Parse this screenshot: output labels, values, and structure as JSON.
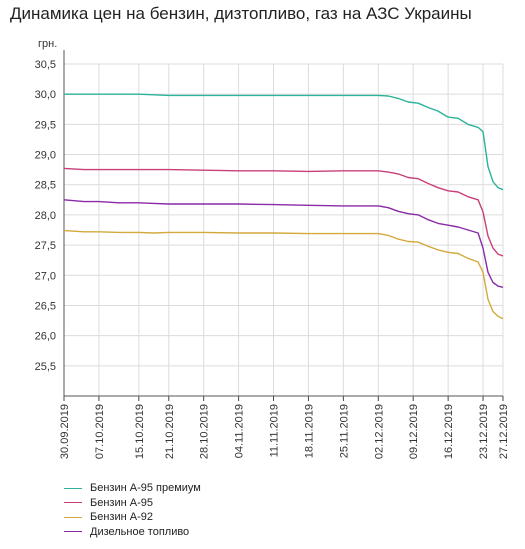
{
  "chart_data": {
    "type": "line",
    "title": "Динамика цен на бензин, дизтопливо, газ на АЗС Украины",
    "ylabel": "грн.",
    "xlabel": "",
    "ylim": [
      25.0,
      30.5
    ],
    "yticks": [
      "25,5",
      "26,0",
      "26,5",
      "27,0",
      "27,5",
      "28,0",
      "28,5",
      "29,0",
      "29,5",
      "30,0",
      "30,5"
    ],
    "ytick_values": [
      25.5,
      26.0,
      26.5,
      27.0,
      27.5,
      28.0,
      28.5,
      29.0,
      29.5,
      30.0,
      30.5
    ],
    "x_dates": [
      "30.09.2019",
      "07.10.2019",
      "15.10.2019",
      "21.10.2019",
      "28.10.2019",
      "04.11.2019",
      "11.11.2019",
      "18.11.2019",
      "25.11.2019",
      "02.12.2019",
      "09.12.2019",
      "16.12.2019",
      "23.12.2019",
      "27.12.2019"
    ],
    "grid": true,
    "legend_position": "bottom-left",
    "series": [
      {
        "name": "Бензин А-95 премиум",
        "color": "#2ab39a",
        "values": [
          [
            "30.09.2019",
            30.0
          ],
          [
            "04.10.2019",
            30.0
          ],
          [
            "07.10.2019",
            30.0
          ],
          [
            "11.10.2019",
            30.0
          ],
          [
            "15.10.2019",
            30.0
          ],
          [
            "18.10.2019",
            29.99
          ],
          [
            "21.10.2019",
            29.98
          ],
          [
            "28.10.2019",
            29.98
          ],
          [
            "04.11.2019",
            29.98
          ],
          [
            "11.11.2019",
            29.98
          ],
          [
            "18.11.2019",
            29.98
          ],
          [
            "25.11.2019",
            29.98
          ],
          [
            "02.12.2019",
            29.98
          ],
          [
            "04.12.2019",
            29.97
          ],
          [
            "06.12.2019",
            29.93
          ],
          [
            "08.12.2019",
            29.87
          ],
          [
            "10.12.2019",
            29.85
          ],
          [
            "12.12.2019",
            29.78
          ],
          [
            "14.12.2019",
            29.72
          ],
          [
            "16.12.2019",
            29.62
          ],
          [
            "18.12.2019",
            29.6
          ],
          [
            "20.12.2019",
            29.5
          ],
          [
            "22.12.2019",
            29.45
          ],
          [
            "23.12.2019",
            29.38
          ],
          [
            "24.12.2019",
            28.8
          ],
          [
            "25.12.2019",
            28.55
          ],
          [
            "26.12.2019",
            28.45
          ],
          [
            "27.12.2019",
            28.42
          ]
        ]
      },
      {
        "name": "Бензин А-95",
        "color": "#c83f79",
        "values": [
          [
            "30.09.2019",
            28.77
          ],
          [
            "04.10.2019",
            28.75
          ],
          [
            "07.10.2019",
            28.75
          ],
          [
            "11.10.2019",
            28.75
          ],
          [
            "15.10.2019",
            28.75
          ],
          [
            "18.10.2019",
            28.75
          ],
          [
            "21.10.2019",
            28.75
          ],
          [
            "28.10.2019",
            28.74
          ],
          [
            "04.11.2019",
            28.73
          ],
          [
            "11.11.2019",
            28.73
          ],
          [
            "18.11.2019",
            28.72
          ],
          [
            "25.11.2019",
            28.73
          ],
          [
            "02.12.2019",
            28.73
          ],
          [
            "04.12.2019",
            28.71
          ],
          [
            "06.12.2019",
            28.68
          ],
          [
            "08.12.2019",
            28.62
          ],
          [
            "10.12.2019",
            28.6
          ],
          [
            "12.12.2019",
            28.52
          ],
          [
            "14.12.2019",
            28.45
          ],
          [
            "16.12.2019",
            28.4
          ],
          [
            "18.12.2019",
            28.38
          ],
          [
            "20.12.2019",
            28.3
          ],
          [
            "22.12.2019",
            28.25
          ],
          [
            "23.12.2019",
            28.05
          ],
          [
            "24.12.2019",
            27.65
          ],
          [
            "25.12.2019",
            27.45
          ],
          [
            "26.12.2019",
            27.35
          ],
          [
            "27.12.2019",
            27.32
          ]
        ]
      },
      {
        "name": "Бензин А-92",
        "color": "#d4a93c",
        "values": [
          [
            "30.09.2019",
            27.74
          ],
          [
            "04.10.2019",
            27.72
          ],
          [
            "07.10.2019",
            27.72
          ],
          [
            "11.10.2019",
            27.71
          ],
          [
            "15.10.2019",
            27.71
          ],
          [
            "18.10.2019",
            27.7
          ],
          [
            "21.10.2019",
            27.71
          ],
          [
            "28.10.2019",
            27.71
          ],
          [
            "04.11.2019",
            27.7
          ],
          [
            "11.11.2019",
            27.7
          ],
          [
            "18.11.2019",
            27.69
          ],
          [
            "25.11.2019",
            27.69
          ],
          [
            "02.12.2019",
            27.69
          ],
          [
            "04.12.2019",
            27.66
          ],
          [
            "06.12.2019",
            27.6
          ],
          [
            "08.12.2019",
            27.56
          ],
          [
            "10.12.2019",
            27.55
          ],
          [
            "12.12.2019",
            27.48
          ],
          [
            "14.12.2019",
            27.42
          ],
          [
            "16.12.2019",
            27.38
          ],
          [
            "18.12.2019",
            27.36
          ],
          [
            "20.12.2019",
            27.28
          ],
          [
            "22.12.2019",
            27.22
          ],
          [
            "23.12.2019",
            27.05
          ],
          [
            "24.12.2019",
            26.6
          ],
          [
            "25.12.2019",
            26.4
          ],
          [
            "26.12.2019",
            26.32
          ],
          [
            "27.12.2019",
            26.28
          ]
        ]
      },
      {
        "name": "Дизельное топливо",
        "color": "#8a2aa8",
        "values": [
          [
            "30.09.2019",
            28.25
          ],
          [
            "04.10.2019",
            28.22
          ],
          [
            "07.10.2019",
            28.22
          ],
          [
            "11.10.2019",
            28.2
          ],
          [
            "15.10.2019",
            28.2
          ],
          [
            "18.10.2019",
            28.19
          ],
          [
            "21.10.2019",
            28.18
          ],
          [
            "28.10.2019",
            28.18
          ],
          [
            "04.11.2019",
            28.18
          ],
          [
            "11.11.2019",
            28.17
          ],
          [
            "18.11.2019",
            28.16
          ],
          [
            "25.11.2019",
            28.15
          ],
          [
            "02.12.2019",
            28.15
          ],
          [
            "04.12.2019",
            28.12
          ],
          [
            "06.12.2019",
            28.06
          ],
          [
            "08.12.2019",
            28.02
          ],
          [
            "10.12.2019",
            28.0
          ],
          [
            "12.12.2019",
            27.92
          ],
          [
            "14.12.2019",
            27.86
          ],
          [
            "16.12.2019",
            27.83
          ],
          [
            "18.12.2019",
            27.8
          ],
          [
            "20.12.2019",
            27.75
          ],
          [
            "22.12.2019",
            27.7
          ],
          [
            "23.12.2019",
            27.45
          ],
          [
            "24.12.2019",
            27.05
          ],
          [
            "25.12.2019",
            26.88
          ],
          [
            "26.12.2019",
            26.82
          ],
          [
            "27.12.2019",
            26.8
          ]
        ]
      }
    ]
  }
}
